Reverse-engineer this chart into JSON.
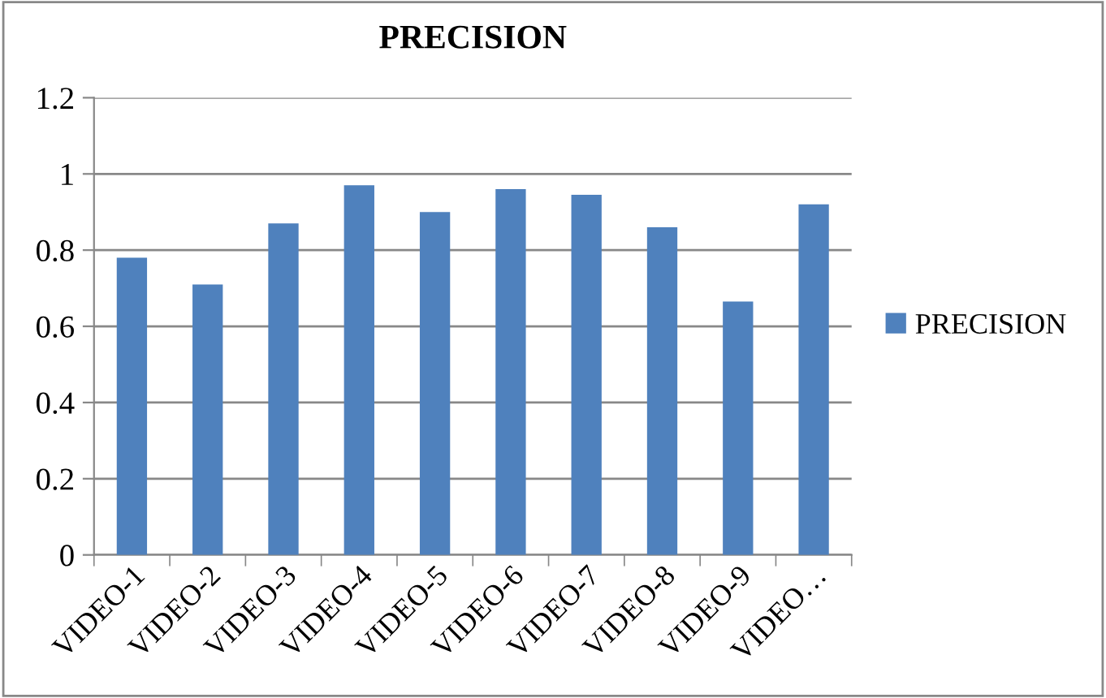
{
  "chart_data": {
    "type": "bar",
    "title": "PRECISION",
    "categories": [
      "VIDEO-1",
      "VIDEO-2",
      "VIDEO-3",
      "VIDEO-4",
      "VIDEO-5",
      "VIDEO-6",
      "VIDEO-7",
      "VIDEO-8",
      "VIDEO-9",
      "VIDEO…"
    ],
    "series": [
      {
        "name": "PRECISION",
        "color": "#4f81bd",
        "values": [
          0.78,
          0.71,
          0.87,
          0.97,
          0.9,
          0.96,
          0.945,
          0.86,
          0.665,
          0.92
        ]
      }
    ],
    "ylim": [
      0,
      1.2
    ],
    "yticks": [
      0,
      0.2,
      0.4,
      0.6,
      0.8,
      1,
      1.2
    ],
    "grid": "y",
    "legend": "right"
  }
}
